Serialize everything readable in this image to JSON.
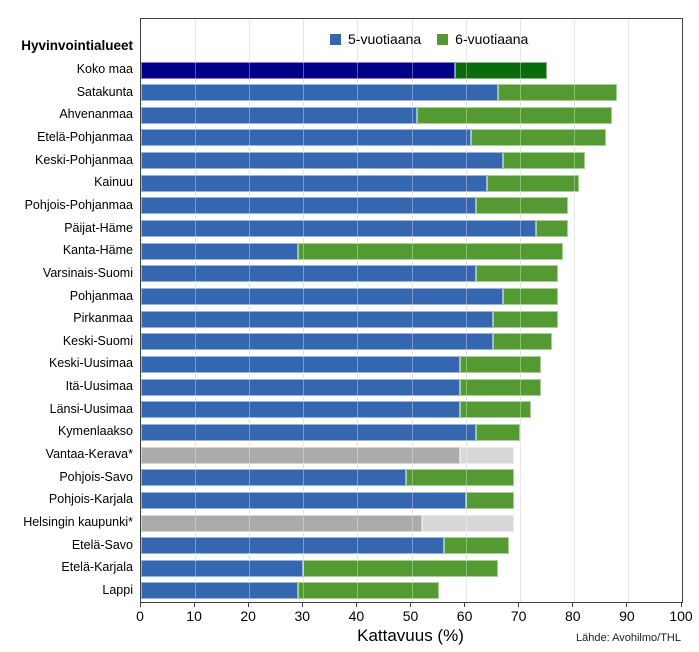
{
  "y_axis_title": "Hyvinvointialueet",
  "x_axis_title": "Kattavuus (%)",
  "source": "Lähde: Avohilmo/THL",
  "legend": [
    {
      "label": "5-vuotiaana",
      "color": "#3567b1"
    },
    {
      "label": "6-vuotiaana",
      "color": "#549a32"
    }
  ],
  "chart_data": {
    "type": "bar",
    "orientation": "horizontal",
    "stacked": true,
    "xlabel": "Kattavuus (%)",
    "xlim": [
      0,
      100
    ],
    "xticks": [
      0,
      10,
      20,
      30,
      40,
      50,
      60,
      70,
      80,
      90,
      100
    ],
    "grid": true,
    "legend_position": "top-center",
    "series_names": [
      "5-vuotiaana",
      "6-vuotiaana"
    ],
    "note": "values are cumulative coverage %: age5 = coverage at age 5, total = coverage by age 6",
    "rows": [
      {
        "label": "Koko maa",
        "age5": 58,
        "total": 75,
        "style": "national"
      },
      {
        "label": "Satakunta",
        "age5": 66,
        "total": 88,
        "style": "normal"
      },
      {
        "label": "Ahvenanmaa",
        "age5": 51,
        "total": 87,
        "style": "normal"
      },
      {
        "label": "Etelä-Pohjanmaa",
        "age5": 61,
        "total": 86,
        "style": "normal"
      },
      {
        "label": "Keski-Pohjanmaa",
        "age5": 67,
        "total": 82,
        "style": "normal"
      },
      {
        "label": "Kainuu",
        "age5": 64,
        "total": 81,
        "style": "normal"
      },
      {
        "label": "Pohjois-Pohjanmaa",
        "age5": 62,
        "total": 79,
        "style": "normal"
      },
      {
        "label": "Päijat-Häme",
        "age5": 73,
        "total": 79,
        "style": "normal"
      },
      {
        "label": "Kanta-Häme",
        "age5": 29,
        "total": 78,
        "style": "normal"
      },
      {
        "label": "Varsinais-Suomi",
        "age5": 62,
        "total": 77,
        "style": "normal"
      },
      {
        "label": "Pohjanmaa",
        "age5": 67,
        "total": 77,
        "style": "normal"
      },
      {
        "label": "Pirkanmaa",
        "age5": 65,
        "total": 77,
        "style": "normal"
      },
      {
        "label": "Keski-Suomi",
        "age5": 65,
        "total": 76,
        "style": "normal"
      },
      {
        "label": "Keski-Uusimaa",
        "age5": 59,
        "total": 74,
        "style": "normal"
      },
      {
        "label": "Itä-Uusimaa",
        "age5": 59,
        "total": 74,
        "style": "normal"
      },
      {
        "label": "Länsi-Uusimaa",
        "age5": 59,
        "total": 72,
        "style": "normal"
      },
      {
        "label": "Kymenlaakso",
        "age5": 62,
        "total": 70,
        "style": "normal"
      },
      {
        "label": "Vantaa-Kerava*",
        "age5": 59,
        "total": 69,
        "style": "muted"
      },
      {
        "label": "Pohjois-Savo",
        "age5": 49,
        "total": 69,
        "style": "normal"
      },
      {
        "label": "Pohjois-Karjala",
        "age5": 60,
        "total": 69,
        "style": "normal"
      },
      {
        "label": "Helsingin kaupunki*",
        "age5": 52,
        "total": 69,
        "style": "muted"
      },
      {
        "label": "Etelä-Savo",
        "age5": 56,
        "total": 68,
        "style": "normal"
      },
      {
        "label": "Etelä-Karjala",
        "age5": 30,
        "total": 66,
        "style": "normal"
      },
      {
        "label": "Lappi",
        "age5": 29,
        "total": 55,
        "style": "normal"
      }
    ],
    "colors": {
      "normal5": "#3567b1",
      "normal6": "#549a32",
      "national5": "#00008b",
      "national6": "#0a6b0a",
      "muted5": "#ababab",
      "muted6": "#d8d8d8",
      "gridline": "#d9d9d9",
      "frame": "#3f3f3f"
    }
  }
}
